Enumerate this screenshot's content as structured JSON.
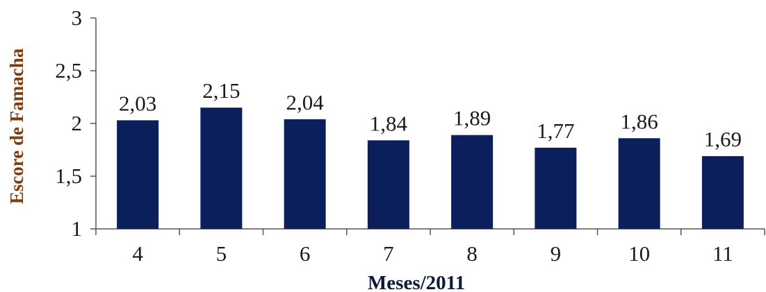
{
  "chart_data": {
    "type": "bar",
    "categories": [
      "4",
      "5",
      "6",
      "7",
      "8",
      "9",
      "10",
      "11"
    ],
    "values": [
      2.03,
      2.15,
      2.04,
      1.84,
      1.89,
      1.77,
      1.86,
      1.69
    ],
    "value_labels": [
      "2,03",
      "2,15",
      "2,04",
      "1,84",
      "1,89",
      "1,77",
      "1,86",
      "1,69"
    ],
    "xlabel": "Meses/2011",
    "ylabel": "Escore de Famacha",
    "ylim": [
      1,
      3
    ],
    "yticks": [
      1,
      1.5,
      2,
      2.5,
      3
    ],
    "ytick_labels": [
      "1",
      "1,5",
      "2",
      "2,5",
      "3"
    ],
    "grid": false,
    "legend": "none",
    "bar_color": "#0b1f5c"
  }
}
